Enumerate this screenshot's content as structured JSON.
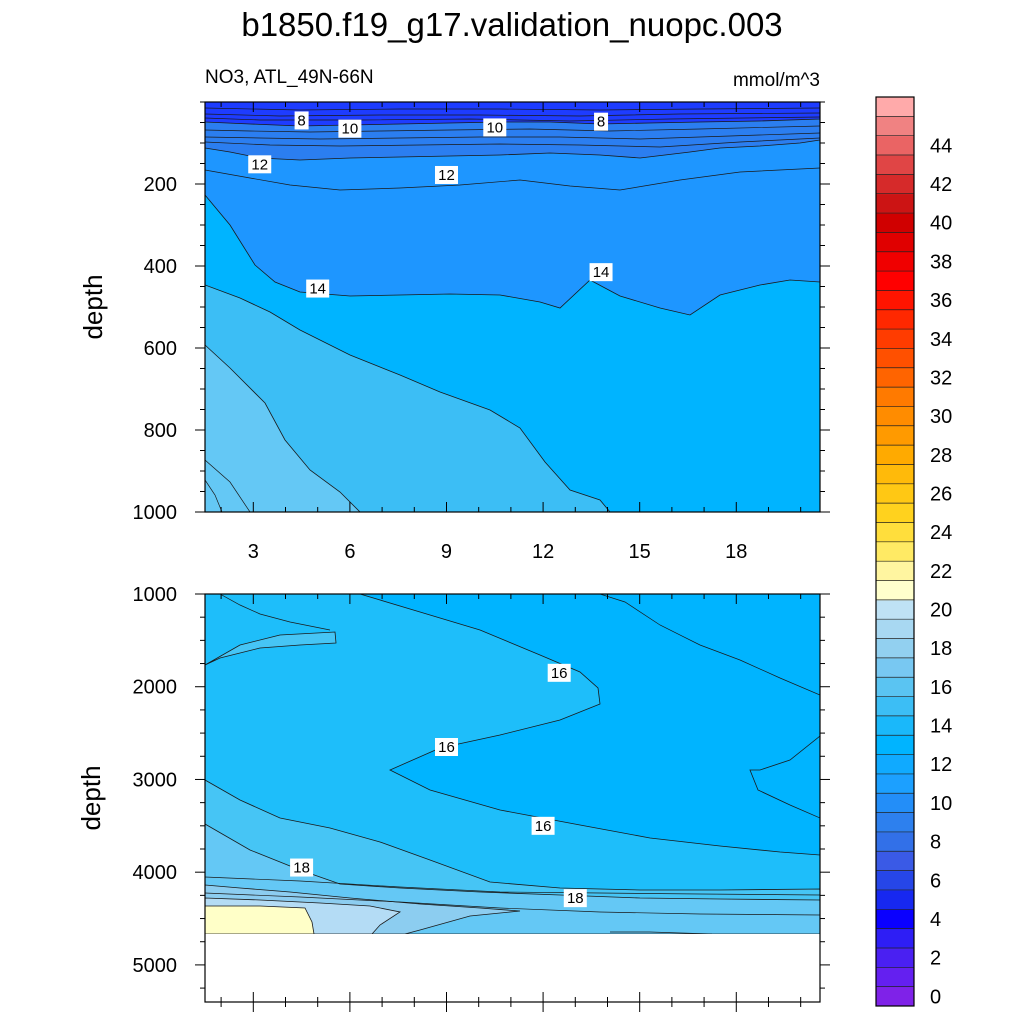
{
  "title": "b1850.f19_g17.validation_nuopc.003",
  "left_string": "NO3, ATL_49N-66N",
  "right_string": "mmol/m^3",
  "chart_data": [
    {
      "type": "heatmap",
      "panel": "upper",
      "ylabel": "depth",
      "xlim": [
        1.5,
        20.6
      ],
      "ylim": [
        1000,
        0
      ],
      "x_ticks": [
        "3",
        "6",
        "9",
        "12",
        "15",
        "18"
      ],
      "y_ticks": [
        "200",
        "400",
        "600",
        "800",
        "1000"
      ],
      "grid": false,
      "contour_labels": [
        {
          "text": "8",
          "x": 4.5,
          "y": 45
        },
        {
          "text": "10",
          "x": 6.0,
          "y": 65
        },
        {
          "text": "12",
          "x": 3.2,
          "y": 152
        },
        {
          "text": "10",
          "x": 10.5,
          "y": 62
        },
        {
          "text": "12",
          "x": 9.0,
          "y": 178
        },
        {
          "text": "8",
          "x": 13.8,
          "y": 48
        },
        {
          "text": "14",
          "x": 5.0,
          "y": 455
        },
        {
          "text": "14",
          "x": 13.8,
          "y": 415
        }
      ],
      "regions": [
        {
          "value": 6,
          "color": "#1e3cff"
        },
        {
          "value": 10,
          "color": "#2b7ef0"
        },
        {
          "value": 12,
          "color": "#1e96ff"
        },
        {
          "value": 14,
          "color": "#00b4ff"
        },
        {
          "value": 16,
          "color": "#3cbef5"
        },
        {
          "value": 18,
          "color": "#64c8f5"
        }
      ]
    },
    {
      "type": "heatmap",
      "panel": "lower",
      "ylabel": "depth",
      "xlim": [
        1.5,
        20.6
      ],
      "ylim": [
        5400,
        1000
      ],
      "x_ticks": [],
      "y_ticks": [
        "1000",
        "2000",
        "3000",
        "4000",
        "5000"
      ],
      "grid": false,
      "contour_labels": [
        {
          "text": "16",
          "x": 12.5,
          "y": 1850
        },
        {
          "text": "16",
          "x": 9.0,
          "y": 2650
        },
        {
          "text": "16",
          "x": 12.0,
          "y": 3500
        },
        {
          "text": "18",
          "x": 4.5,
          "y": 3950
        },
        {
          "text": "18",
          "x": 13.0,
          "y": 4280
        }
      ],
      "regions": [
        {
          "value": 14,
          "color": "#00b4ff"
        },
        {
          "value": 16,
          "color": "#1ebefa"
        },
        {
          "value": 17,
          "color": "#46c5f5"
        },
        {
          "value": 18,
          "color": "#64c8f5"
        },
        {
          "value": 19,
          "color": "#8ccdf0"
        },
        {
          "value": 20,
          "color": "#b4dcf5"
        },
        {
          "value": 22,
          "color": "#ffffc8"
        }
      ]
    }
  ],
  "colorbar": {
    "labels": [
      "0",
      "2",
      "4",
      "6",
      "8",
      "10",
      "12",
      "14",
      "16",
      "18",
      "20",
      "22",
      "24",
      "26",
      "28",
      "30",
      "32",
      "34",
      "36",
      "38",
      "40",
      "42",
      "44"
    ],
    "colors": [
      "#7f22e8",
      "#6420f0",
      "#4a20f2",
      "#2e1ef5",
      "#0a00ff",
      "#1728f0",
      "#2646e8",
      "#3a5ae6",
      "#3270e8",
      "#2d80ee",
      "#238ef8",
      "#1ca0ff",
      "#10aaff",
      "#00b4ff",
      "#1ab8fa",
      "#3cbef5",
      "#5ac4f2",
      "#78c8f2",
      "#92d0f0",
      "#a8d8f2",
      "#bfe2f5",
      "#ffffcc",
      "#fff5a0",
      "#ffea64",
      "#ffde3c",
      "#ffd21e",
      "#ffc814",
      "#ffba0a",
      "#ffaa00",
      "#ff9a00",
      "#ff8c00",
      "#ff7a00",
      "#ff6400",
      "#ff5000",
      "#ff3c00",
      "#ff2800",
      "#ff1400",
      "#ff0000",
      "#f00000",
      "#e00000",
      "#d00000",
      "#cc1414",
      "#d62a2a",
      "#e04545",
      "#ea6464",
      "#f08282",
      "#ffaaaa"
    ]
  }
}
